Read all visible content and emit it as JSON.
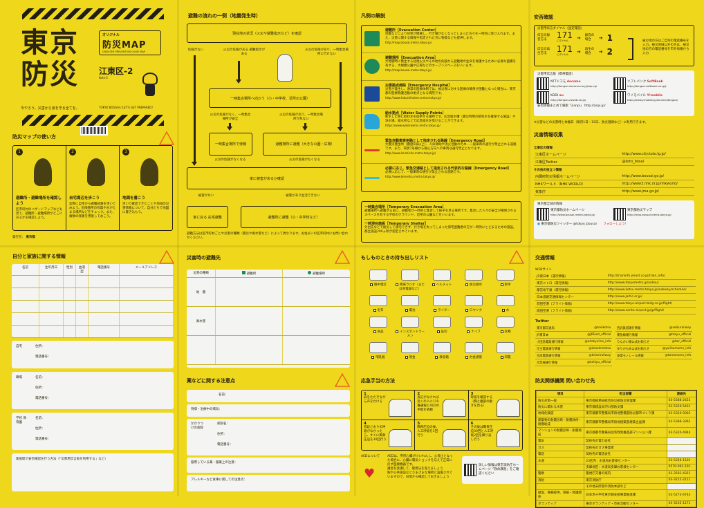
{
  "colors": {
    "background": "#efd81c",
    "ink": "#2a2410",
    "evac_center": "#1e8a5a",
    "hospital": "#1b4a9b",
    "water": "#2aa5d8",
    "road_red": "#e03a2a",
    "road_cyan": "#35bfd8",
    "warning": "#e8661e"
  },
  "cover": {
    "title_line1": "東京",
    "title_line2": "防災",
    "badge_small": "オリジナル",
    "badge_title": "防災MAP",
    "badge_sub": "DISASTER PREVENTION GUIDE MAP",
    "area": "江東区-2",
    "area_romaji": "Koto-2",
    "tagline": "今やろう。災害から身を守る全てを。",
    "tagline_en": "TOKYO BOUSAI / LET'S GET PREPARED!"
  },
  "usage": {
    "title": "防災マップの使い方",
    "badge": "書き込もう",
    "steps": [
      {
        "num": "1",
        "title": "避難所・避難場所を確認しよう",
        "text": "区市町村のハザードマップなども見て、避難所・避難場所がどこにあるかを確認しよう。"
      },
      {
        "num": "2",
        "title": "自宅周辺を歩こう",
        "text": "実際に自宅から避難経路を歩いてみよう。危険箇所の有無や水がたまる場所などをチェック。また、複数の経路を用意しておこう。"
      },
      {
        "num": "3",
        "title": "地図を書こう",
        "text": "歩いて確認できたことや地域の災害情報について、自分たちで地図に書き込もう。"
      }
    ],
    "publisher_label": "発行元：",
    "publisher": "東京都"
  },
  "flow": {
    "title": "避難の流れの一例（地震発生時）",
    "boxes": [
      "現在地の状況（火災や避難指示など）を確認",
      "一時集合場所へ向かう（小・中学校、近所の公園）",
      "一時集合場所で待機",
      "避難場所に避難（大きな公園・広場）",
      "家に被害があるか確認",
      "家に戻る 在宅避難",
      "避難所に避難（小・中学校など）"
    ],
    "labels": [
      "危険がない",
      "火災の危険がある 避難指示がある",
      "火災の危険があり、一時集合場所に行けない",
      "火災の危険がなく、一時集合場所が安全",
      "火災の危険があり、一時集合場所が危ない",
      "火災の危険がなくなる",
      "火災の危険がなくなる",
      "被害がない",
      "被害があり生活できない"
    ],
    "note": "避難方法は区市町村ごとや災害の種類（震災や風水害など）によって異なります。お住まいの区市町村にお問い合わせください。"
  },
  "legend": {
    "title": "凡例の解説",
    "items": [
      {
        "name": "避難所［Evacuation Center］",
        "text": "地震などにより住宅が倒壊し、行き場がなくなってしまった方々を一時的に受け入れます。また、災害に関する情報や指定された方に物資なども提供します。",
        "url": "http://map.bousai.metro.tokyo.jp/",
        "icon": "evacuation-center-icon"
      },
      {
        "name": "避難場所［Evacuation Area］",
        "text": "大地震時に発生する延焼火災やその他の危険から避難者の生命を保護するために必要な面積を有する、大規模公園や広場などのオープンスペースをいいます。",
        "url": "http://map.bousai.metro.tokyo.jp/",
        "icon": "evacuation-area-icon"
      },
      {
        "name": "災害拠点病院［Emergency Hospital］",
        "text": "災害が発生し、通常の医療体制では、被災者に対する医療の確保が困難となった場合に、東京都の医療救護活動の拠点となる病院です。",
        "url": "http://www.fukushihoken.metro.tokyo.jp/",
        "icon": "hospital-icon"
      },
      {
        "name": "給水拠点［Water Supply Points］",
        "text": "断水した際に飲料水を提供する場所です。応急給水槽（震災時用の飲料水を確保する施設）や浄水場、給水所などで応急給水を受けることができます。",
        "url": "https://www.waterworks.metro.tokyo.jp/",
        "icon": "water-tap-icon"
      },
      {
        "name": "緊急自動車専用路として指定される路線［Emergency Road］",
        "text": "大震災発生時（震度6弱以上）、人命救助や消火活動のため、一般車両の通行が禁止される道路です。また、環状7号線から都心方向への車両は通行禁止となります。",
        "url": "http://www.keishicho.metro.tokyo.jp/",
        "icon": "red-road-line"
      },
      {
        "name": "必要に応じ、緊急交通路として指定される代表的な路線［Emergency Road］",
        "text": "必要に応じて、一般車両の通行が禁止される道路です。",
        "url": "http://www.kensetsu.metro.tokyo.jp/",
        "icon": "cyan-road-line"
      }
    ],
    "extra": [
      {
        "name": "一時集合場所［Temporary Evacuation Area］",
        "text": "避難場所へ避難する前に、避難者が一時的に集合して様子を見る場所です。集合した人々の安全が確保されるスペースを有する学校のグラウンド、近所の公園などをいいます。"
      },
      {
        "name": "一時滞在施設［Temporary Shelter］",
        "text": "外出先などで被災して帰宅できず、行き場を失ってしまった帰宅困難者の方が一時的にとどまるための施設。都立施設200ヵ所が指定されています。"
      }
    ]
  },
  "safety": {
    "title": "安否確認",
    "dial_title": "災害用伝言ダイヤル（固定電話）",
    "rows": [
      {
        "label": "伝言の録音方法",
        "num": "171",
        "sub": "にダイヤル",
        "case": "録音の場合",
        "key": "1"
      },
      {
        "label": "伝言の再生方法",
        "num": "171",
        "sub": "にダイヤル",
        "case": "再生の場合",
        "key": "2"
      }
    ],
    "dial_note": "被災地の方はご自宅の電話番号を入力。被災地域以外の方は、被災地の方の電話番号を市外局番から入力",
    "board_title": "災害用伝言板（携帯電話）",
    "carriers": [
      {
        "name": "NTTドコモ",
        "brand": "docomo",
        "url": "http://dengon.docomo.ne.jp/top.cgi"
      },
      {
        "name": "ソフトバンク",
        "brand": "SoftBank",
        "url": "http://dengon.softbank.ne.jp/J"
      },
      {
        "name": "KDDI",
        "brand": "au",
        "url": "http://dengon.ezweb.ne.jp/"
      },
      {
        "name": "ワイモバイル",
        "brand": "Y!mobile",
        "url": "http://www.ymobile.jp/service/dengon/"
      }
    ],
    "janpi": "安否情報まとめて検索「J-anpi」 http://anpi.jp/",
    "footnote": "※災害などの災害時と体験日（毎月1日・15日、防災週間など）に利用できます。"
  },
  "info": {
    "title": "災害情報収集",
    "sec1": "江東区の情報",
    "links1": [
      {
        "name": "江東区ホームページ",
        "url": "http://www.city.koto.lg.jp/"
      },
      {
        "name": "江東区Twitter",
        "url": "@koto_bosai"
      }
    ],
    "sec2": "その他の役立つ情報",
    "links2": [
      {
        "name": "内閣府防災情報ホームページ",
        "url": "http://www.bousai.go.jp/"
      },
      {
        "name": "NHKワールド（NHK WORLD）",
        "url": "http://www3.nhk.or.jp/nhkworld/"
      },
      {
        "name": "気象庁",
        "url": "http://www.jma.go.jp/"
      }
    ],
    "tokyo_title": "東京都全域の情報",
    "tokyo": [
      {
        "name": "東京都防災ホームページ",
        "url": "http://www.bousai.metro.tokyo.jp/"
      },
      {
        "name": "東京都防災マップ",
        "url": "http://map.bousai.metro.tokyo.jp/"
      }
    ],
    "twitter": "東京都防災ツイッター @tokyo_bousai",
    "follow": "フォローしよう！"
  },
  "family": {
    "title": "自分と家族に関する情報",
    "badge": "書き込もう",
    "columns": [
      "名前",
      "生年月日",
      "性別",
      "血液型",
      "電話番号",
      "メールアドレス"
    ],
    "home": {
      "label": "自宅",
      "fields": [
        "住所：",
        "電話番号："
      ]
    },
    "work": {
      "label": "職場",
      "fields": [
        "名前：",
        "住所：",
        "電話番号："
      ]
    },
    "school": {
      "label": "学校 保育園",
      "fields": [
        "名前：",
        "住所：",
        "電話番号："
      ]
    },
    "method": "家族間で安否確認を行う方法（「災害用伝言板を利用する」など）"
  },
  "evac": {
    "title": "災害時の避難先",
    "badge": "書き込もう",
    "col0": "災害の種類",
    "col1": "避難所",
    "col2": "避難場所",
    "rows": [
      "地　震",
      "風水害",
      ""
    ]
  },
  "medicine": {
    "title": "薬などに関する注意点",
    "badge": "書き込もう",
    "name": "名前：",
    "disease": "持病・治療中の病気：",
    "hospital_label": "かかりつけの病院",
    "hospital_fields": [
      "病院名：",
      "住所：",
      "電話番号："
    ],
    "drugs": "服用している薬・服薬上の注意：",
    "allergy": "アレルギーなど食事に関しての注意点："
  },
  "carry": {
    "title": "もしものときの持ち出しリスト",
    "badge": "書き込もう",
    "items": [
      "懐中電灯",
      "携帯ラジオ（または充電器など）",
      "ヘルメット",
      "防災頭巾",
      "軍手",
      "毛布",
      "電池",
      "ライター",
      "ロウソク",
      "水",
      "食品",
      "インスタントラーメン",
      "缶切",
      "ナイフ",
      "衣類",
      "哺乳瓶",
      "現金",
      "救急箱",
      "貯金通帳",
      "印鑑"
    ]
  },
  "firstaid": {
    "title": "応急手当の方法",
    "steps": [
      {
        "num": "1",
        "text": "肩をたたきながら声をかける"
      },
      {
        "num": "2",
        "text": "反応がなければ近くの人に119番通報とAEDの手配を依頼"
      },
      {
        "num": "3",
        "text": "呼吸を確認する（胸と腹部の動きを見る）"
      },
      {
        "num": "4",
        "text": "普段どおりの呼吸がなかったら、すぐに胸骨圧迫を30回行う"
      },
      {
        "num": "5",
        "text": "胸骨圧迫の後、人工呼吸を2回行う"
      },
      {
        "num": "6",
        "text": "その後は胸骨圧迫30回と人工呼吸2回を繰り返し行う"
      }
    ],
    "aed_label": "AEDについて",
    "aed_text": "AEDは、突然心臓がけいれんし、心停止となった場合に、心臓に電気ショックを与えて正常に戻す医療機器です。",
    "aed_bullets": [
      "講習を受講して、使用法を覚えましょう",
      "駅や公共施設などさまざまな場所に設置されていますので、日頃から確認しておきましょう"
    ],
    "more": "詳しい情報は東京消防庁ホームページ「救命講習」をご確認ください"
  },
  "transport": {
    "title": "交通情報",
    "web_label": "WEBサイト",
    "web": [
      {
        "name": "JR東日本（運行情報）",
        "url": "http://traininfo.jreast.co.jp/train_info/"
      },
      {
        "name": "東京メトロ（運行情報）",
        "url": "http://www.tokyometro.jp/unkou/"
      },
      {
        "name": "都営地下鉄（運行情報）",
        "url": "http://www.kotsu.metro.tokyo.jp/subway/schedule/"
      },
      {
        "name": "日本道路交通情報センター",
        "url": "http://www.jartic.or.jp/"
      },
      {
        "name": "羽田空港（フライト情報）",
        "url": "http://www.tokyo-airport-bldg.co.jp/flight/"
      },
      {
        "name": "成田空港（フライト情報）",
        "url": "http://www.narita-airport.jp/jp/flight/"
      }
    ],
    "twitter_label": "Twitter",
    "twitter": [
      {
        "name": "東京都交通局",
        "id": "@toeikotsu"
      },
      {
        "name": "西武鉄道運行情報",
        "id": "@seiburailway"
      },
      {
        "name": "JR東日本",
        "id": "@JREast_official"
      },
      {
        "name": "東急線運行情報",
        "id": "@tokyu_official"
      },
      {
        "name": "小田急電鉄運行情報",
        "id": "@odakyuline_info"
      },
      {
        "name": "りんかい線公式お知らせ",
        "id": "@twr_official"
      },
      {
        "name": "京王電鉄運行情報",
        "id": "@keiodentetsu"
      },
      {
        "name": "ゆりかもめ公式お知らせ",
        "id": "@yurikamome_info"
      },
      {
        "name": "京成電鉄運行情報",
        "id": "@keiseirailway"
      },
      {
        "name": "多摩モノレール情報",
        "id": "@tamamono_info"
      },
      {
        "name": "京急線運行情報",
        "id": "@keikyu_official"
      }
    ]
  },
  "contacts": {
    "title": "防災関係機関 問い合わせ先",
    "headers": [
      "項目",
      "担当部署",
      "連絡先"
    ],
    "rows": [
      [
        "防災対策一般",
        "東京都総務局総合防災部防災管理課",
        "03-5388-2453"
      ],
      [
        "防災に関わる水害",
        "東京都建設局河川部防災課",
        "03-5320-5431"
      ],
      [
        "地域危険度",
        "東京都都市整備局市街地整備部防災都市づくり課",
        "03-5320-5003"
      ],
      [
        "建築物の耐震診断・耐震改修・耐震助成",
        "東京都都市整備局市街地建築部建築企画課",
        "03-5388-3362"
      ],
      [
        "マンションの耐震診断・耐震助成",
        "東京都都市整備局住宅政策推進部マンション課",
        "03-5320-4944"
      ],
      [
        "電気",
        "契約先の電力会社",
        ""
      ],
      [
        "ガス",
        "契約先のガス事業者",
        ""
      ],
      [
        "電話",
        "契約先の電話会社",
        ""
      ],
      [
        "水道",
        "23区内：水道局お客様センター",
        "03-5326-1101"
      ],
      [
        "",
        "多摩地区：水道局多摩お客様センター",
        "0570-091-101"
      ],
      [
        "警察",
        "警視庁交番の案内",
        "03-3581-4321"
      ],
      [
        "消防",
        "東京消防庁",
        "03-3212-2111"
      ],
      [
        "",
        "その他未所管の消防本部など",
        ""
      ],
      [
        "献血、骨髄提供、救援・救護関係",
        "日本赤十字社東京都支部事業推進課",
        "03-5273-6744"
      ],
      [
        "ボランティア",
        "東京ボランティア・市民活動センター",
        "03-3235-1171"
      ]
    ]
  }
}
